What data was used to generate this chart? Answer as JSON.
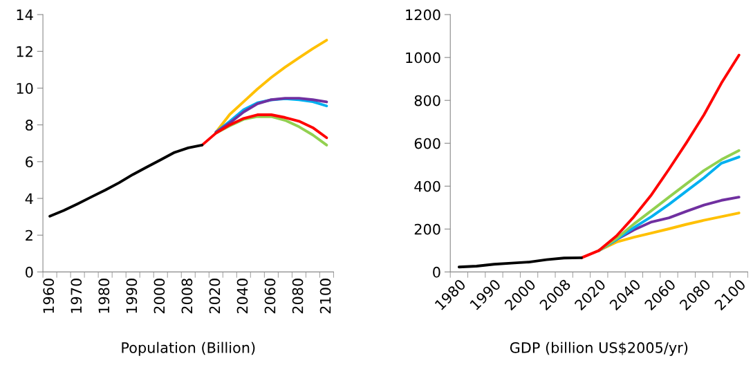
{
  "chart_data": [
    {
      "type": "line",
      "xlabel": "Population (Billion)",
      "categories": [
        "1960",
        null,
        "1970",
        null,
        "1980",
        null,
        "1990",
        null,
        "2000",
        null,
        "2008",
        null,
        "2020",
        null,
        "2040",
        null,
        "2060",
        null,
        "2080",
        null,
        "2100"
      ],
      "ylim": [
        0,
        14
      ],
      "yticks": [
        0,
        2,
        4,
        6,
        8,
        10,
        12,
        14
      ],
      "grid": false,
      "legend": false,
      "line_style": "solid",
      "marker": "none",
      "series": [
        {
          "color": "#ffc000",
          "values": [
            null,
            null,
            null,
            null,
            null,
            null,
            null,
            null,
            null,
            null,
            null,
            null,
            7.6,
            8.57,
            9.26,
            9.95,
            10.58,
            11.14,
            11.65,
            12.15,
            12.61
          ]
        },
        {
          "color": "#00b0f0",
          "values": [
            null,
            null,
            null,
            null,
            null,
            null,
            null,
            null,
            null,
            null,
            null,
            null,
            7.6,
            8.19,
            8.82,
            9.2,
            9.36,
            9.42,
            9.37,
            9.26,
            9.03
          ]
        },
        {
          "color": "#7030a0",
          "values": [
            null,
            null,
            null,
            null,
            null,
            null,
            null,
            null,
            null,
            null,
            null,
            null,
            7.6,
            8.1,
            8.7,
            9.15,
            9.37,
            9.45,
            9.45,
            9.37,
            9.25
          ]
        },
        {
          "color": "#92d050",
          "values": [
            null,
            null,
            null,
            null,
            null,
            null,
            null,
            null,
            null,
            null,
            null,
            null,
            7.55,
            7.95,
            8.3,
            8.45,
            8.45,
            8.25,
            7.9,
            7.45,
            6.9
          ]
        },
        {
          "color": "#ff0000",
          "values": [
            null,
            null,
            null,
            null,
            null,
            null,
            null,
            null,
            null,
            null,
            null,
            6.9,
            7.55,
            8.0,
            8.35,
            8.55,
            8.55,
            8.4,
            8.2,
            7.85,
            7.3
          ]
        },
        {
          "color": "#000000",
          "values": [
            3.03,
            3.34,
            3.7,
            4.08,
            4.45,
            4.85,
            5.3,
            5.7,
            6.1,
            6.5,
            6.75,
            6.9,
            null,
            null,
            null,
            null,
            null,
            null,
            null,
            null,
            null
          ]
        }
      ]
    },
    {
      "type": "line",
      "xlabel": "GDP (billion US$2005/yr)",
      "categories": [
        "1980",
        null,
        "1990",
        null,
        "2000",
        null,
        "2008",
        null,
        "2020",
        null,
        "2040",
        null,
        "2060",
        null,
        "2080",
        null,
        "2100"
      ],
      "ylim": [
        0,
        1200
      ],
      "yticks": [
        0,
        200,
        400,
        600,
        800,
        1000,
        1200
      ],
      "grid": false,
      "legend": false,
      "line_style": "solid",
      "marker": "none",
      "series": [
        {
          "color": "#ffc000",
          "values": [
            null,
            null,
            null,
            null,
            null,
            null,
            null,
            null,
            100,
            139,
            162,
            181,
            201,
            222,
            241,
            258,
            275
          ]
        },
        {
          "color": "#7030a0",
          "values": [
            null,
            null,
            null,
            null,
            null,
            null,
            null,
            null,
            100,
            151,
            196,
            233,
            252,
            283,
            312,
            334,
            349
          ]
        },
        {
          "color": "#00b0f0",
          "values": [
            null,
            null,
            null,
            null,
            null,
            null,
            null,
            null,
            100,
            151,
            207,
            258,
            315,
            377,
            439,
            507,
            536
          ]
        },
        {
          "color": "#92d050",
          "values": [
            null,
            null,
            null,
            null,
            null,
            null,
            null,
            null,
            100,
            156,
            224,
            286,
            349,
            411,
            473,
            524,
            566
          ]
        },
        {
          "color": "#ff0000",
          "values": [
            null,
            null,
            null,
            null,
            null,
            null,
            null,
            66,
            100,
            168,
            258,
            360,
            479,
            603,
            733,
            881,
            1011
          ]
        },
        {
          "color": "#000000",
          "values": [
            23,
            27,
            36,
            41,
            46,
            57,
            65,
            66,
            null,
            null,
            null,
            null,
            null,
            null,
            null,
            null,
            null
          ]
        }
      ]
    }
  ]
}
